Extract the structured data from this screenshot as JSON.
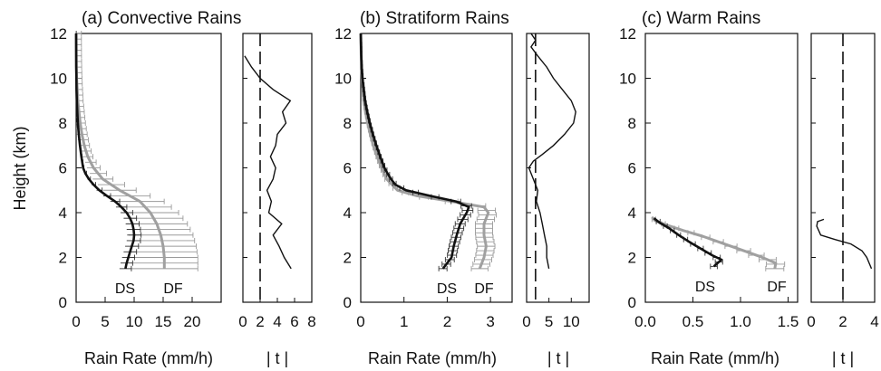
{
  "chart_data": [
    {
      "type": "line",
      "title": "(a) Convective Rains",
      "xlabel": "Rain Rate (mm/h)",
      "ylabel": "Height (km)",
      "xlim": [
        0,
        25
      ],
      "ylim": [
        0,
        12
      ],
      "xticks": [
        "0",
        "5",
        "10",
        "15",
        "20"
      ],
      "yticks": [
        "0",
        "2",
        "4",
        "6",
        "8",
        "10",
        "12"
      ],
      "series": [
        {
          "name": "DS",
          "color": "#111111",
          "points": [
            [
              8.5,
              1.5
            ],
            [
              8.7,
              1.75
            ],
            [
              9.0,
              2.0
            ],
            [
              9.3,
              2.25
            ],
            [
              9.6,
              2.5
            ],
            [
              9.9,
              2.75
            ],
            [
              10.0,
              3.0
            ],
            [
              9.9,
              3.25
            ],
            [
              9.7,
              3.5
            ],
            [
              9.3,
              3.75
            ],
            [
              8.7,
              4.0
            ],
            [
              7.8,
              4.25
            ],
            [
              6.7,
              4.5
            ],
            [
              5.3,
              4.75
            ],
            [
              4.0,
              5.0
            ],
            [
              3.0,
              5.25
            ],
            [
              2.2,
              5.5
            ],
            [
              1.6,
              5.75
            ],
            [
              1.2,
              6.0
            ],
            [
              0.9,
              6.5
            ],
            [
              0.65,
              7.0
            ],
            [
              0.45,
              7.5
            ],
            [
              0.3,
              8.0
            ],
            [
              0.2,
              8.5
            ],
            [
              0.12,
              9.0
            ],
            [
              0.07,
              9.5
            ],
            [
              0.04,
              10.0
            ],
            [
              0.02,
              10.5
            ],
            [
              0.01,
              11.0
            ],
            [
              0.0,
              12.0
            ]
          ]
        },
        {
          "name": "DF",
          "color": "#a0a0a0",
          "points": [
            [
              15.2,
              1.5
            ],
            [
              15.2,
              2.0
            ],
            [
              15.0,
              2.5
            ],
            [
              14.6,
              3.0
            ],
            [
              13.9,
              3.5
            ],
            [
              12.8,
              4.0
            ],
            [
              11.0,
              4.5
            ],
            [
              7.5,
              5.0
            ],
            [
              4.6,
              5.5
            ],
            [
              3.0,
              6.0
            ],
            [
              2.0,
              6.5
            ],
            [
              1.4,
              7.0
            ],
            [
              1.0,
              7.5
            ],
            [
              0.7,
              8.0
            ],
            [
              0.5,
              8.5
            ],
            [
              0.3,
              9.0
            ],
            [
              0.2,
              9.5
            ],
            [
              0.1,
              10.0
            ],
            [
              0.05,
              10.5
            ],
            [
              0.02,
              11.0
            ],
            [
              0.0,
              12.0
            ]
          ]
        }
      ],
      "side_panel": {
        "xlabel": "| t |",
        "xlim": [
          0,
          8
        ],
        "xticks": [
          "0",
          "2",
          "4",
          "6",
          "8"
        ],
        "threshold": 2,
        "points": [
          [
            5.6,
            1.5
          ],
          [
            4.8,
            2.0
          ],
          [
            4.2,
            2.5
          ],
          [
            3.5,
            3.0
          ],
          [
            4.5,
            3.5
          ],
          [
            3.0,
            4.0
          ],
          [
            3.3,
            4.5
          ],
          [
            2.8,
            5.0
          ],
          [
            3.5,
            5.5
          ],
          [
            3.8,
            6.0
          ],
          [
            3.2,
            6.5
          ],
          [
            3.8,
            7.0
          ],
          [
            4.0,
            7.5
          ],
          [
            5.0,
            8.0
          ],
          [
            4.6,
            8.5
          ],
          [
            5.5,
            9.0
          ],
          [
            3.5,
            9.5
          ],
          [
            2.0,
            10.0
          ],
          [
            1.0,
            10.5
          ],
          [
            0.2,
            11.0
          ]
        ]
      }
    },
    {
      "type": "line",
      "title": "(b) Stratiform Rains",
      "xlabel": "Rain Rate (mm/h)",
      "ylabel": "",
      "xlim": [
        0,
        3.5
      ],
      "ylim": [
        0,
        12
      ],
      "xticks": [
        "0",
        "1",
        "2",
        "3"
      ],
      "yticks": [
        "0",
        "2",
        "4",
        "6",
        "8",
        "10",
        "12"
      ],
      "series": [
        {
          "name": "DS",
          "color": "#111111",
          "points": [
            [
              1.9,
              1.5
            ],
            [
              2.0,
              1.75
            ],
            [
              2.1,
              2.0
            ],
            [
              2.15,
              2.5
            ],
            [
              2.22,
              3.0
            ],
            [
              2.3,
              3.5
            ],
            [
              2.45,
              4.0
            ],
            [
              2.5,
              4.25
            ],
            [
              2.2,
              4.5
            ],
            [
              1.6,
              4.75
            ],
            [
              1.05,
              5.0
            ],
            [
              0.8,
              5.25
            ],
            [
              0.7,
              5.5
            ],
            [
              0.62,
              5.75
            ],
            [
              0.55,
              6.0
            ],
            [
              0.45,
              6.5
            ],
            [
              0.36,
              7.0
            ],
            [
              0.28,
              7.5
            ],
            [
              0.21,
              8.0
            ],
            [
              0.15,
              8.5
            ],
            [
              0.1,
              9.0
            ],
            [
              0.07,
              9.5
            ],
            [
              0.04,
              10.0
            ],
            [
              0.02,
              10.5
            ],
            [
              0.01,
              11.0
            ],
            [
              0.0,
              12.0
            ]
          ]
        },
        {
          "name": "DF",
          "color": "#a0a0a0",
          "points": [
            [
              2.75,
              1.5
            ],
            [
              2.85,
              2.0
            ],
            [
              2.9,
              2.5
            ],
            [
              2.85,
              3.0
            ],
            [
              2.85,
              3.5
            ],
            [
              2.95,
              4.0
            ],
            [
              2.85,
              4.25
            ],
            [
              2.1,
              4.5
            ],
            [
              1.3,
              4.75
            ],
            [
              0.85,
              5.0
            ],
            [
              0.6,
              5.5
            ],
            [
              0.48,
              6.0
            ],
            [
              0.38,
              6.5
            ],
            [
              0.29,
              7.0
            ],
            [
              0.22,
              7.5
            ],
            [
              0.16,
              8.0
            ],
            [
              0.11,
              8.5
            ],
            [
              0.07,
              9.0
            ],
            [
              0.05,
              9.5
            ],
            [
              0.03,
              10.0
            ],
            [
              0.01,
              11.0
            ],
            [
              0.0,
              12.0
            ]
          ]
        }
      ],
      "side_panel": {
        "xlabel": "| t |",
        "xlim": [
          0,
          14
        ],
        "xticks": [
          "0",
          "5",
          "10"
        ],
        "threshold": 2,
        "points": [
          [
            5.0,
            1.5
          ],
          [
            4.5,
            2.0
          ],
          [
            4.5,
            2.5
          ],
          [
            4.0,
            3.0
          ],
          [
            3.5,
            3.5
          ],
          [
            3.0,
            4.0
          ],
          [
            2.2,
            4.5
          ],
          [
            2.5,
            5.0
          ],
          [
            1.5,
            5.5
          ],
          [
            0.5,
            6.0
          ],
          [
            1.5,
            6.3
          ],
          [
            3.5,
            6.6
          ],
          [
            6.0,
            7.0
          ],
          [
            8.5,
            7.5
          ],
          [
            10.5,
            8.0
          ],
          [
            11.0,
            8.5
          ],
          [
            10.0,
            9.0
          ],
          [
            8.0,
            9.5
          ],
          [
            6.0,
            10.0
          ],
          [
            4.5,
            10.5
          ],
          [
            2.5,
            11.0
          ],
          [
            1.0,
            11.4
          ],
          [
            2.0,
            11.7
          ],
          [
            1.0,
            12.0
          ]
        ]
      }
    },
    {
      "type": "line",
      "title": "(c) Warm Rains",
      "xlabel": "Rain Rate (mm/h)",
      "ylabel": "",
      "xlim": [
        0,
        1.6
      ],
      "ylim": [
        0,
        12
      ],
      "xticks": [
        "0.0",
        "0.5",
        "1.0",
        "1.5"
      ],
      "yticks": [
        "0",
        "2",
        "4",
        "6",
        "8",
        "10",
        "12"
      ],
      "series": [
        {
          "name": "DS",
          "color": "#111111",
          "points": [
            [
              0.72,
              1.6
            ],
            [
              0.76,
              1.75
            ],
            [
              0.8,
              1.9
            ],
            [
              0.7,
              2.1
            ],
            [
              0.58,
              2.4
            ],
            [
              0.46,
              2.7
            ],
            [
              0.35,
              3.0
            ],
            [
              0.25,
              3.3
            ],
            [
              0.15,
              3.55
            ],
            [
              0.09,
              3.75
            ]
          ]
        },
        {
          "name": "DF",
          "color": "#a0a0a0",
          "points": [
            [
              1.36,
              1.5
            ],
            [
              1.37,
              1.75
            ],
            [
              1.2,
              2.05
            ],
            [
              1.0,
              2.35
            ],
            [
              0.8,
              2.65
            ],
            [
              0.6,
              2.95
            ],
            [
              0.4,
              3.2
            ],
            [
              0.22,
              3.45
            ],
            [
              0.1,
              3.65
            ],
            [
              0.07,
              3.8
            ]
          ]
        }
      ],
      "side_panel": {
        "xlabel": "| t |",
        "xlim": [
          0,
          4
        ],
        "xticks": [
          "0",
          "2",
          "4"
        ],
        "threshold": 2,
        "points": [
          [
            3.8,
            1.5
          ],
          [
            3.5,
            2.0
          ],
          [
            3.2,
            2.3
          ],
          [
            2.5,
            2.6
          ],
          [
            1.5,
            2.8
          ],
          [
            0.6,
            3.0
          ],
          [
            0.35,
            3.4
          ],
          [
            0.4,
            3.6
          ],
          [
            0.8,
            3.7
          ]
        ]
      }
    }
  ]
}
